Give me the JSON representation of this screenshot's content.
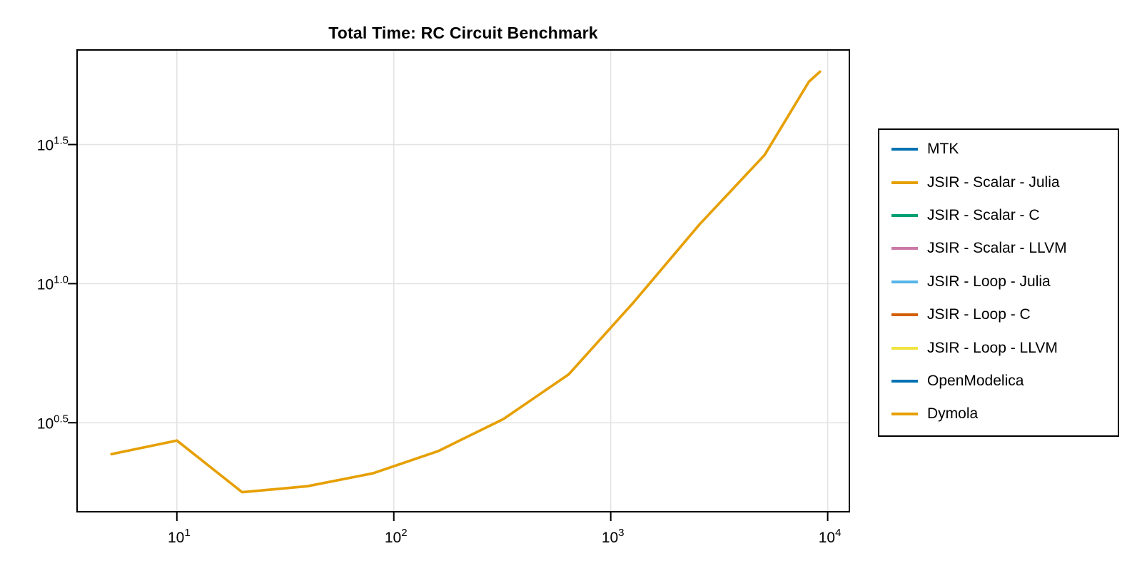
{
  "chart_data": {
    "type": "line",
    "title": "Total Time: RC Circuit Benchmark",
    "xlabel": "",
    "ylabel": "",
    "x_scale": "log10",
    "y_scale": "log10",
    "grid": true,
    "xlim": [
      3.5,
      12500
    ],
    "ylim_seconds": [
      1.5,
      69
    ],
    "xlim_log": [
      0.54,
      4.1
    ],
    "ylim_log": [
      0.18,
      1.84
    ],
    "x_ticks": [
      {
        "value": 10,
        "base": "10",
        "exp": "1"
      },
      {
        "value": 100,
        "base": "10",
        "exp": "2"
      },
      {
        "value": 1000,
        "base": "10",
        "exp": "3"
      },
      {
        "value": 10000,
        "base": "10",
        "exp": "4"
      }
    ],
    "y_ticks": [
      {
        "value": 3.1623,
        "base": "10",
        "exp": "0.5"
      },
      {
        "value": 10,
        "base": "10",
        "exp": "1.0"
      },
      {
        "value": 31.6228,
        "base": "10",
        "exp": "1.5"
      }
    ],
    "legend_position": "right-outside",
    "visible_curve": {
      "color": "#E69F00",
      "x": [
        5,
        10,
        20,
        40,
        80,
        160,
        320,
        640,
        1280,
        2560,
        5120,
        8192,
        9216
      ],
      "y_seconds": [
        2.44,
        2.73,
        1.78,
        1.87,
        2.08,
        2.5,
        3.26,
        4.72,
        8.6,
        16.3,
        29.0,
        53.2,
        57.8
      ]
    }
  },
  "legend": {
    "entries": [
      {
        "label": "MTK",
        "color": "#0072B2"
      },
      {
        "label": "JSIR - Scalar - Julia",
        "color": "#E69F00"
      },
      {
        "label": "JSIR - Scalar - C",
        "color": "#009E73"
      },
      {
        "label": "JSIR - Scalar - LLVM",
        "color": "#CC79A7"
      },
      {
        "label": "JSIR - Loop - Julia",
        "color": "#56B4E9"
      },
      {
        "label": "JSIR - Loop - C",
        "color": "#D55E00"
      },
      {
        "label": "JSIR - Loop - LLVM",
        "color": "#F0E442"
      },
      {
        "label": "OpenModelica",
        "color": "#0072B2"
      },
      {
        "label": "Dymola",
        "color": "#E69F00"
      }
    ]
  },
  "colors": {
    "background": "#ffffff",
    "frame": "#000000",
    "grid": "#e3e3e3",
    "tick_text": "#000000"
  }
}
